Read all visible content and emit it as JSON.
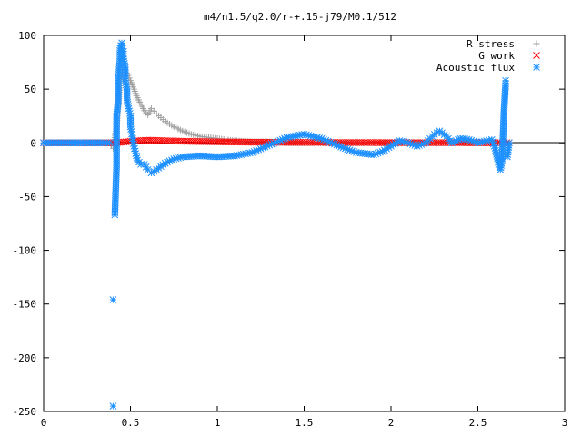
{
  "chart_data": {
    "type": "scatter",
    "title": "m4/n1.5/q2.0/r-+.15-j79/M0.1/512",
    "xlabel": "",
    "ylabel": "",
    "xlim": [
      0,
      3
    ],
    "ylim": [
      -250,
      100
    ],
    "x_ticks": [
      "0",
      "0.5",
      "1",
      "1.5",
      "2",
      "2.5",
      "3"
    ],
    "y_ticks": [
      "100",
      "50",
      "0",
      "-50",
      "-100",
      "-150",
      "-200",
      "-250"
    ],
    "legend_position": "top-right",
    "grid": false,
    "series": [
      {
        "name": "R stress",
        "marker": "plus",
        "color": "#a0a0a0",
        "points": [
          [
            0.0,
            0
          ],
          [
            0.1,
            0
          ],
          [
            0.2,
            0
          ],
          [
            0.3,
            0
          ],
          [
            0.38,
            0
          ],
          [
            0.4,
            -5
          ],
          [
            0.41,
            5
          ],
          [
            0.42,
            15
          ],
          [
            0.43,
            35
          ],
          [
            0.44,
            55
          ],
          [
            0.45,
            65
          ],
          [
            0.46,
            70
          ],
          [
            0.47,
            68
          ],
          [
            0.48,
            65
          ],
          [
            0.5,
            58
          ],
          [
            0.52,
            50
          ],
          [
            0.54,
            42
          ],
          [
            0.56,
            36
          ],
          [
            0.58,
            30
          ],
          [
            0.6,
            26
          ],
          [
            0.62,
            32
          ],
          [
            0.65,
            27
          ],
          [
            0.7,
            20
          ],
          [
            0.75,
            15
          ],
          [
            0.8,
            11
          ],
          [
            0.85,
            8
          ],
          [
            0.9,
            6
          ],
          [
            0.95,
            5
          ],
          [
            1.0,
            4
          ],
          [
            1.1,
            2
          ],
          [
            1.2,
            1
          ],
          [
            1.3,
            1
          ],
          [
            1.4,
            0
          ],
          [
            1.5,
            0
          ],
          [
            1.7,
            0
          ],
          [
            1.9,
            0
          ],
          [
            2.1,
            0
          ],
          [
            2.3,
            0
          ],
          [
            2.5,
            0
          ],
          [
            2.6,
            0
          ],
          [
            2.68,
            0
          ]
        ]
      },
      {
        "name": "G work",
        "marker": "cross",
        "color": "#ff0000",
        "points": [
          [
            0.0,
            0
          ],
          [
            0.2,
            0
          ],
          [
            0.38,
            0
          ],
          [
            0.45,
            0.5
          ],
          [
            0.5,
            1.5
          ],
          [
            0.55,
            2
          ],
          [
            0.6,
            2.5
          ],
          [
            0.7,
            2
          ],
          [
            0.8,
            1.5
          ],
          [
            0.9,
            1.2
          ],
          [
            1.0,
            1
          ],
          [
            1.1,
            0.8
          ],
          [
            1.2,
            0.6
          ],
          [
            1.3,
            0.5
          ],
          [
            1.4,
            0.5
          ],
          [
            1.5,
            0.4
          ],
          [
            1.6,
            0.4
          ],
          [
            1.7,
            0.3
          ],
          [
            1.8,
            0.3
          ],
          [
            1.9,
            0.3
          ],
          [
            2.0,
            0.2
          ],
          [
            2.1,
            0.2
          ],
          [
            2.2,
            0.2
          ],
          [
            2.3,
            0.2
          ],
          [
            2.4,
            0.2
          ],
          [
            2.5,
            0.1
          ],
          [
            2.6,
            0.1
          ],
          [
            2.68,
            0
          ]
        ]
      },
      {
        "name": "Acoustic flux",
        "marker": "star",
        "color": "#1e90ff",
        "points": [
          [
            0.0,
            0
          ],
          [
            0.05,
            0
          ],
          [
            0.1,
            0
          ],
          [
            0.15,
            0
          ],
          [
            0.2,
            0
          ],
          [
            0.25,
            0
          ],
          [
            0.3,
            0
          ],
          [
            0.35,
            0
          ],
          [
            0.38,
            0
          ],
          [
            0.4,
            -245
          ],
          [
            0.4,
            -146
          ],
          [
            0.41,
            -67
          ],
          [
            0.42,
            -22
          ],
          [
            0.42,
            25
          ],
          [
            0.43,
            40
          ],
          [
            0.43,
            58
          ],
          [
            0.44,
            78
          ],
          [
            0.44,
            88
          ],
          [
            0.45,
            93
          ],
          [
            0.45,
            90
          ],
          [
            0.46,
            85
          ],
          [
            0.46,
            78
          ],
          [
            0.47,
            70
          ],
          [
            0.47,
            58
          ],
          [
            0.48,
            50
          ],
          [
            0.48,
            40
          ],
          [
            0.49,
            32
          ],
          [
            0.5,
            25
          ],
          [
            0.5,
            15
          ],
          [
            0.51,
            6
          ],
          [
            0.52,
            -3
          ],
          [
            0.53,
            -10
          ],
          [
            0.54,
            -16
          ],
          [
            0.55,
            -18
          ],
          [
            0.56,
            -20
          ],
          [
            0.58,
            -20
          ],
          [
            0.6,
            -25
          ],
          [
            0.62,
            -28
          ],
          [
            0.65,
            -25
          ],
          [
            0.7,
            -19
          ],
          [
            0.75,
            -15
          ],
          [
            0.8,
            -13
          ],
          [
            0.9,
            -12
          ],
          [
            1.0,
            -13
          ],
          [
            1.1,
            -12
          ],
          [
            1.2,
            -9
          ],
          [
            1.3,
            -2
          ],
          [
            1.4,
            5
          ],
          [
            1.5,
            8
          ],
          [
            1.6,
            4
          ],
          [
            1.7,
            -3
          ],
          [
            1.8,
            -9
          ],
          [
            1.9,
            -11
          ],
          [
            1.95,
            -8
          ],
          [
            2.0,
            -3
          ],
          [
            2.05,
            2
          ],
          [
            2.1,
            0
          ],
          [
            2.15,
            -3
          ],
          [
            2.2,
            0
          ],
          [
            2.25,
            8
          ],
          [
            2.28,
            11
          ],
          [
            2.32,
            6
          ],
          [
            2.35,
            0
          ],
          [
            2.4,
            4
          ],
          [
            2.45,
            3
          ],
          [
            2.5,
            0
          ],
          [
            2.55,
            2
          ],
          [
            2.58,
            3
          ],
          [
            2.6,
            -5
          ],
          [
            2.62,
            -20
          ],
          [
            2.63,
            -25
          ],
          [
            2.64,
            -15
          ],
          [
            2.65,
            28
          ],
          [
            2.66,
            55
          ],
          [
            2.66,
            58
          ],
          [
            2.67,
            -13
          ],
          [
            2.68,
            0
          ]
        ]
      }
    ]
  }
}
